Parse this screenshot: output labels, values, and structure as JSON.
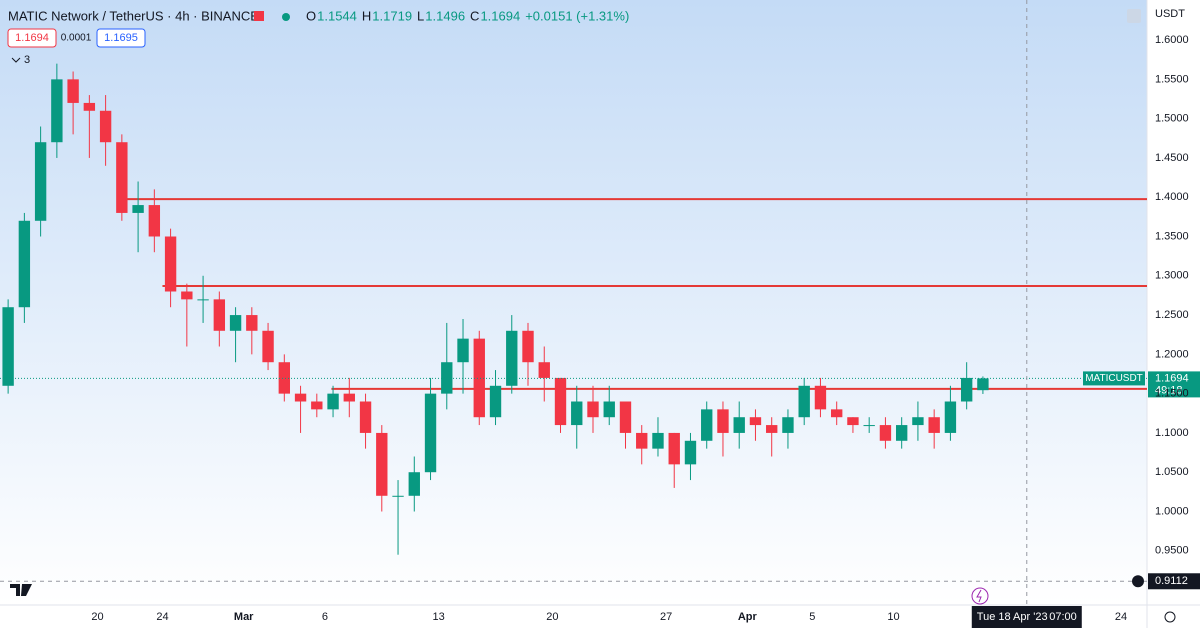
{
  "chart_data": {
    "type": "candlestick",
    "title": "MATIC Network / TetherUS · 4h · BINANCE",
    "ohlc_header": [
      {
        "label": "O",
        "value": 1.1544
      },
      {
        "label": "H",
        "value": 1.1719
      },
      {
        "label": "L",
        "value": 1.1496
      },
      {
        "label": "C",
        "value": 1.1694
      }
    ],
    "change": "+0.0151 (+1.31%)",
    "bid": 1.1694,
    "spread": 0.0001,
    "ask": 1.1695,
    "indicators_count": 3,
    "currency": "USDT",
    "up_color": "#089981",
    "down_color": "#f23645",
    "x": [
      45,
      46,
      47,
      48,
      49,
      50,
      51,
      52,
      53,
      54,
      55,
      56,
      57,
      58,
      59,
      60,
      61,
      62,
      63,
      64,
      65,
      66,
      67,
      68,
      69,
      70,
      71,
      72,
      73,
      74,
      75,
      76,
      77,
      78,
      79,
      80,
      81,
      82,
      83,
      84,
      85,
      86,
      87,
      88,
      89,
      90,
      91,
      92,
      93,
      94,
      95,
      96,
      97,
      98,
      99,
      100,
      101,
      102,
      103,
      104,
      105
    ],
    "open": [
      1.16,
      1.26,
      1.37,
      1.47,
      1.55,
      1.52,
      1.51,
      1.47,
      1.38,
      1.39,
      1.35,
      1.28,
      1.27,
      1.27,
      1.23,
      1.25,
      1.23,
      1.19,
      1.15,
      1.14,
      1.13,
      1.15,
      1.14,
      1.1,
      1.02,
      1.02,
      1.05,
      1.15,
      1.19,
      1.22,
      1.12,
      1.16,
      1.23,
      1.19,
      1.17,
      1.11,
      1.14,
      1.12,
      1.14,
      1.1,
      1.08,
      1.1,
      1.06,
      1.09,
      1.13,
      1.1,
      1.12,
      1.11,
      1.1,
      1.12,
      1.16,
      1.13,
      1.12,
      1.11,
      1.11,
      1.09,
      1.11,
      1.12,
      1.1,
      1.14,
      1.1544
    ],
    "high": [
      1.27,
      1.38,
      1.49,
      1.57,
      1.56,
      1.53,
      1.53,
      1.48,
      1.42,
      1.41,
      1.36,
      1.29,
      1.3,
      1.28,
      1.26,
      1.26,
      1.24,
      1.2,
      1.16,
      1.15,
      1.16,
      1.17,
      1.15,
      1.11,
      1.04,
      1.07,
      1.17,
      1.24,
      1.245,
      1.23,
      1.18,
      1.25,
      1.24,
      1.21,
      1.17,
      1.16,
      1.16,
      1.16,
      1.14,
      1.11,
      1.12,
      1.1,
      1.1,
      1.14,
      1.14,
      1.14,
      1.13,
      1.12,
      1.13,
      1.17,
      1.17,
      1.14,
      1.12,
      1.12,
      1.12,
      1.12,
      1.14,
      1.13,
      1.16,
      1.19,
      1.1719
    ],
    "low": [
      1.15,
      1.24,
      1.35,
      1.45,
      1.48,
      1.45,
      1.44,
      1.37,
      1.33,
      1.33,
      1.26,
      1.21,
      1.24,
      1.21,
      1.19,
      1.2,
      1.18,
      1.14,
      1.1,
      1.12,
      1.12,
      1.12,
      1.08,
      1.0,
      0.945,
      1.0,
      1.04,
      1.13,
      1.15,
      1.11,
      1.11,
      1.15,
      1.16,
      1.14,
      1.1,
      1.08,
      1.1,
      1.11,
      1.08,
      1.06,
      1.07,
      1.03,
      1.04,
      1.08,
      1.07,
      1.08,
      1.09,
      1.07,
      1.08,
      1.11,
      1.12,
      1.11,
      1.1,
      1.1,
      1.08,
      1.08,
      1.09,
      1.08,
      1.09,
      1.13,
      1.1496
    ],
    "close": [
      1.26,
      1.37,
      1.47,
      1.55,
      1.52,
      1.51,
      1.47,
      1.38,
      1.39,
      1.35,
      1.28,
      1.27,
      1.27,
      1.23,
      1.25,
      1.23,
      1.19,
      1.15,
      1.14,
      1.13,
      1.15,
      1.14,
      1.1,
      1.02,
      1.02,
      1.05,
      1.15,
      1.19,
      1.22,
      1.12,
      1.16,
      1.23,
      1.19,
      1.17,
      1.11,
      1.14,
      1.12,
      1.14,
      1.1,
      1.08,
      1.1,
      1.06,
      1.09,
      1.13,
      1.1,
      1.12,
      1.11,
      1.1,
      1.12,
      1.16,
      1.13,
      1.12,
      1.11,
      1.11,
      1.09,
      1.11,
      1.12,
      1.1,
      1.14,
      1.17,
      1.1694
    ],
    "xlim": [
      45,
      115.6
    ],
    "ylim": [
      0.881,
      1.651
    ],
    "xticks": [
      {
        "value": 51,
        "label": "20"
      },
      {
        "value": 55,
        "label": "24"
      },
      {
        "value": 60,
        "label": "Mar"
      },
      {
        "value": 65,
        "label": "6"
      },
      {
        "value": 72,
        "label": "13"
      },
      {
        "value": 79,
        "label": "20"
      },
      {
        "value": 86,
        "label": "27"
      },
      {
        "value": 91,
        "label": "Apr"
      },
      {
        "value": 95,
        "label": "5"
      },
      {
        "value": 100,
        "label": "10"
      },
      {
        "value": 114,
        "label": "24"
      }
    ],
    "yticks": [
      {
        "value": 0.95,
        "label": "0.9500"
      },
      {
        "value": 1.0,
        "label": "1.0000"
      },
      {
        "value": 1.05,
        "label": "1.0500"
      },
      {
        "value": 1.1,
        "label": "1.1000"
      },
      {
        "value": 1.15,
        "label": "1.1500"
      },
      {
        "value": 1.2,
        "label": "1.2000"
      },
      {
        "value": 1.25,
        "label": "1.2500"
      },
      {
        "value": 1.3,
        "label": "1.3000"
      },
      {
        "value": 1.35,
        "label": "1.3500"
      },
      {
        "value": 1.4,
        "label": "1.4000"
      },
      {
        "value": 1.45,
        "label": "1.4500"
      },
      {
        "value": 1.5,
        "label": "1.5000"
      },
      {
        "value": 1.55,
        "label": "1.5500"
      },
      {
        "value": 1.6,
        "label": "1.6000"
      }
    ],
    "levels": [
      {
        "value": 1.3975,
        "start": 52.7,
        "color": "#e53935"
      },
      {
        "value": 1.287,
        "start": 55,
        "color": "#e53935"
      },
      {
        "value": 1.156,
        "start": 65.4,
        "color": "#e53935"
      }
    ],
    "last_price": {
      "symbol": "MATICUSDT",
      "value": 1.1694,
      "countdown": "49:18"
    },
    "crosshair": {
      "x": 108.2,
      "value": 0.9112,
      "date_label": "Tue 18 Apr '23",
      "time_label": "07:00"
    }
  }
}
